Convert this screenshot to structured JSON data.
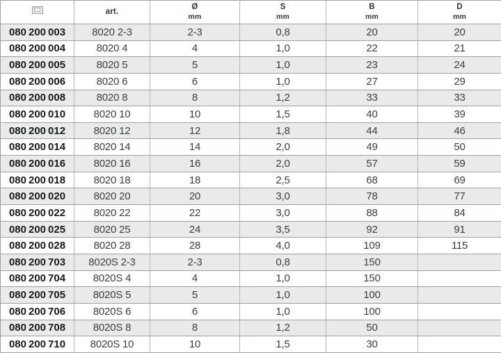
{
  "table": {
    "columns": [
      {
        "label": "",
        "icon": "barcode-icon"
      },
      {
        "label": "art.",
        "sub": ""
      },
      {
        "label": "Ø",
        "sub": "mm"
      },
      {
        "label": "S",
        "sub": "mm"
      },
      {
        "label": "B",
        "sub": "mm"
      },
      {
        "label": "D",
        "sub": "mm"
      }
    ],
    "rows": [
      [
        "080 200 003",
        "8020 2-3",
        "2-3",
        "0,8",
        "20",
        "20"
      ],
      [
        "080 200 004",
        "8020 4",
        "4",
        "1,0",
        "22",
        "21"
      ],
      [
        "080 200 005",
        "8020 5",
        "5",
        "1,0",
        "23",
        "24"
      ],
      [
        "080 200 006",
        "8020 6",
        "6",
        "1,0",
        "27",
        "29"
      ],
      [
        "080 200 008",
        "8020 8",
        "8",
        "1,2",
        "33",
        "33"
      ],
      [
        "080 200 010",
        "8020 10",
        "10",
        "1,5",
        "40",
        "39"
      ],
      [
        "080 200 012",
        "8020 12",
        "12",
        "1,8",
        "44",
        "46"
      ],
      [
        "080 200 014",
        "8020 14",
        "14",
        "2,0",
        "49",
        "50"
      ],
      [
        "080 200 016",
        "8020 16",
        "16",
        "2,0",
        "57",
        "59"
      ],
      [
        "080 200 018",
        "8020 18",
        "18",
        "2,5",
        "68",
        "69"
      ],
      [
        "080 200 020",
        "8020 20",
        "20",
        "3,0",
        "78",
        "77"
      ],
      [
        "080 200 022",
        "8020 22",
        "22",
        "3,0",
        "88",
        "84"
      ],
      [
        "080 200 025",
        "8020 25",
        "24",
        "3,5",
        "92",
        "91"
      ],
      [
        "080 200 028",
        "8020 28",
        "28",
        "4,0",
        "109",
        "115"
      ],
      [
        "080 200 703",
        "8020S 2-3",
        "2-3",
        "0,8",
        "150",
        ""
      ],
      [
        "080 200 704",
        "8020S 4",
        "4",
        "1,0",
        "150",
        ""
      ],
      [
        "080 200 705",
        "8020S 5",
        "5",
        "1,0",
        "100",
        ""
      ],
      [
        "080 200 706",
        "8020S 6",
        "6",
        "1,0",
        "100",
        ""
      ],
      [
        "080 200 708",
        "8020S 8",
        "8",
        "1,2",
        "50",
        ""
      ],
      [
        "080 200 710",
        "8020S 10",
        "10",
        "1,5",
        "30",
        ""
      ]
    ]
  },
  "colors": {
    "row_stripe": "#e9eaea",
    "grid_line": "#9aa0a0",
    "column_line": "#b2b6b6",
    "code_text": "#1a1a1a",
    "cell_text": "#3d3d3d",
    "header_text": "#333333"
  }
}
